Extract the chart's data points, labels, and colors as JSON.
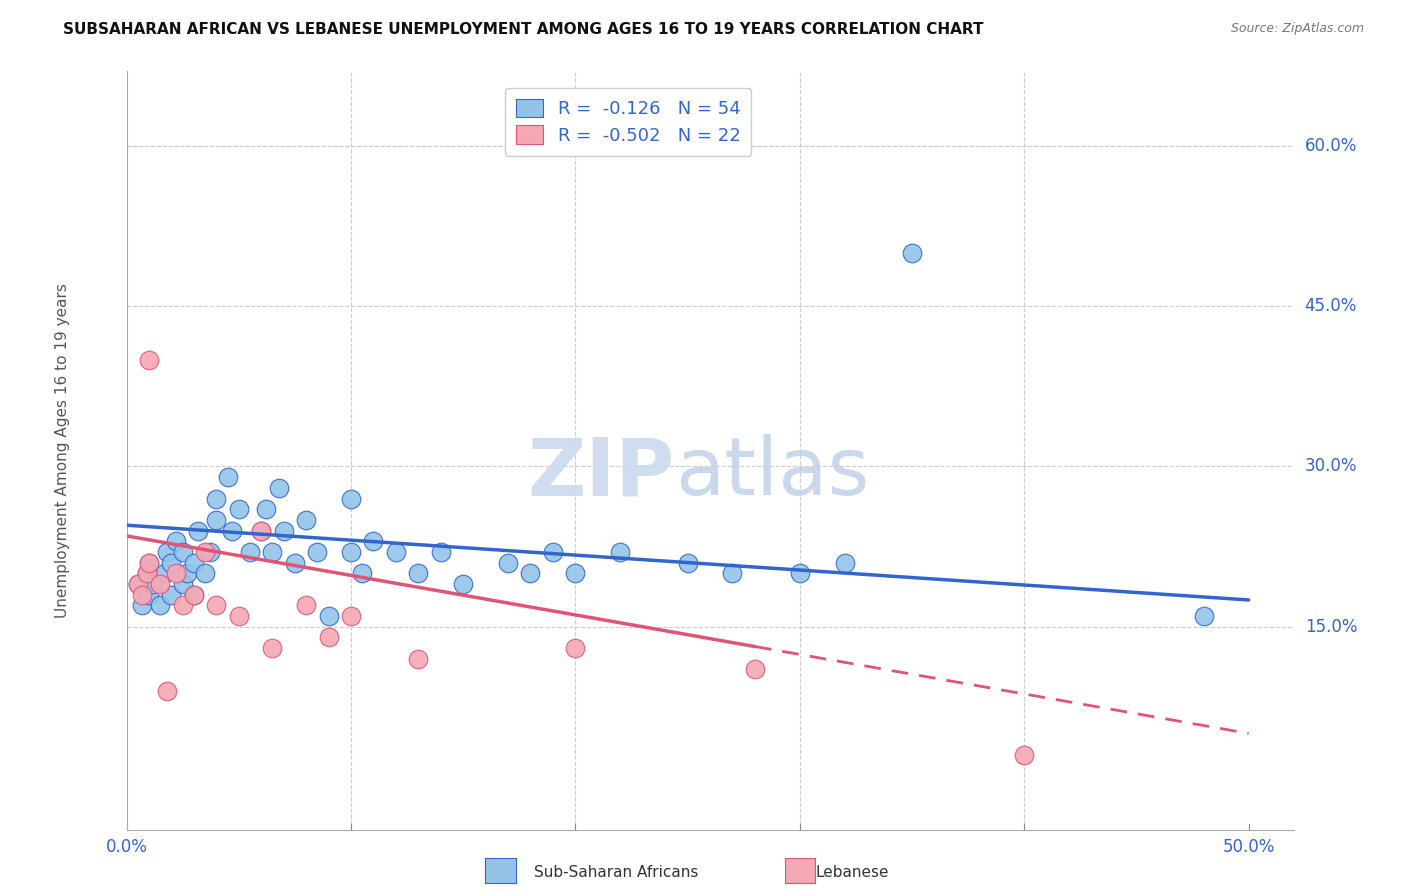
{
  "title": "SUBSAHARAN AFRICAN VS LEBANESE UNEMPLOYMENT AMONG AGES 16 TO 19 YEARS CORRELATION CHART",
  "source": "Source: ZipAtlas.com",
  "ylabel": "Unemployment Among Ages 16 to 19 years",
  "ytick_values": [
    0.15,
    0.3,
    0.45,
    0.6
  ],
  "ytick_labels": [
    "15.0%",
    "30.0%",
    "45.0%",
    "60.0%"
  ],
  "xtick_values": [
    0.0,
    0.1,
    0.2,
    0.3,
    0.4,
    0.5
  ],
  "xtick_labels": [
    "0.0%",
    "",
    "",
    "",
    "",
    "50.0%"
  ],
  "xlim": [
    0.0,
    0.52
  ],
  "ylim": [
    -0.04,
    0.67
  ],
  "blue_R": "-0.126",
  "blue_N": "54",
  "pink_R": "-0.502",
  "pink_N": "22",
  "legend_label1": "Sub-Saharan Africans",
  "legend_label2": "Lebanese",
  "blue_color": "#93C4E8",
  "pink_color": "#F4A8B4",
  "blue_line_color": "#3366CC",
  "pink_line_color": "#E05575",
  "watermark_zip": "ZIP",
  "watermark_atlas": "atlas",
  "blue_x": [
    0.005,
    0.007,
    0.009,
    0.01,
    0.01,
    0.012,
    0.015,
    0.017,
    0.018,
    0.02,
    0.02,
    0.022,
    0.025,
    0.025,
    0.027,
    0.03,
    0.03,
    0.032,
    0.035,
    0.037,
    0.04,
    0.04,
    0.045,
    0.047,
    0.05,
    0.055,
    0.06,
    0.062,
    0.065,
    0.068,
    0.07,
    0.075,
    0.08,
    0.085,
    0.09,
    0.1,
    0.1,
    0.105,
    0.11,
    0.12,
    0.13,
    0.14,
    0.15,
    0.17,
    0.18,
    0.19,
    0.2,
    0.22,
    0.25,
    0.27,
    0.3,
    0.32,
    0.35,
    0.48
  ],
  "blue_y": [
    0.19,
    0.17,
    0.2,
    0.18,
    0.21,
    0.19,
    0.17,
    0.2,
    0.22,
    0.18,
    0.21,
    0.23,
    0.22,
    0.19,
    0.2,
    0.21,
    0.18,
    0.24,
    0.2,
    0.22,
    0.27,
    0.25,
    0.29,
    0.24,
    0.26,
    0.22,
    0.24,
    0.26,
    0.22,
    0.28,
    0.24,
    0.21,
    0.25,
    0.22,
    0.16,
    0.27,
    0.22,
    0.2,
    0.23,
    0.22,
    0.2,
    0.22,
    0.19,
    0.21,
    0.2,
    0.22,
    0.2,
    0.22,
    0.21,
    0.2,
    0.2,
    0.21,
    0.5,
    0.16
  ],
  "pink_x": [
    0.005,
    0.007,
    0.009,
    0.01,
    0.01,
    0.015,
    0.018,
    0.022,
    0.025,
    0.03,
    0.035,
    0.04,
    0.05,
    0.06,
    0.065,
    0.08,
    0.09,
    0.1,
    0.13,
    0.2,
    0.28,
    0.4
  ],
  "pink_y": [
    0.19,
    0.18,
    0.2,
    0.21,
    0.4,
    0.19,
    0.09,
    0.2,
    0.17,
    0.18,
    0.22,
    0.17,
    0.16,
    0.24,
    0.13,
    0.17,
    0.14,
    0.16,
    0.12,
    0.13,
    0.11,
    0.03
  ]
}
